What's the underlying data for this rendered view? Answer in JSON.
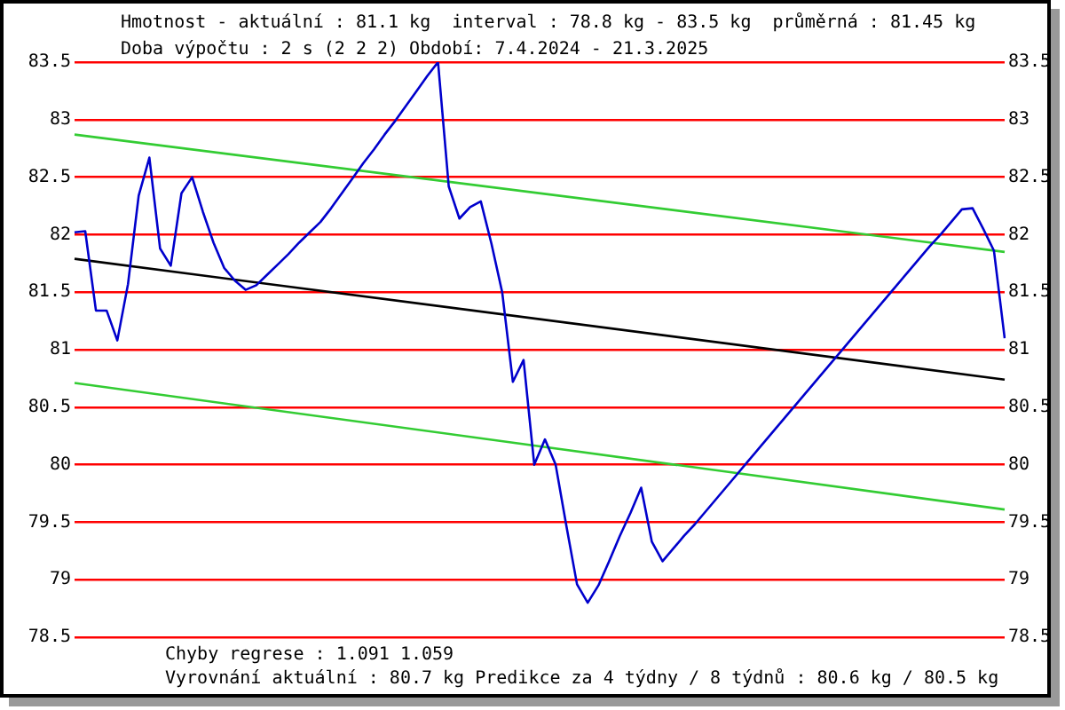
{
  "chart_data": {
    "type": "line",
    "title": "Hmotnost - aktuální : 81.1 kg  interval : 78.8 kg - 83.5 kg  průměrná : 81.45 kg",
    "subtitle": "Doba výpočtu : 2 s (2 2 2) Období: 7.4.2024 - 21.3.2025",
    "categories": [
      null,
      null,
      null,
      null,
      null,
      null,
      null,
      null,
      null,
      null,
      null,
      null,
      null,
      null,
      null,
      null,
      null,
      null,
      null,
      null,
      null,
      null,
      null,
      null,
      null,
      null,
      null,
      null,
      null,
      null,
      null,
      null,
      null,
      null,
      null,
      null,
      null,
      null,
      null,
      null,
      null,
      null,
      null,
      null,
      null,
      null,
      null,
      null,
      null,
      null,
      null,
      null,
      null,
      null,
      null,
      null,
      null,
      null,
      null,
      null,
      null,
      null,
      null,
      null,
      null,
      null,
      null,
      null,
      null,
      null,
      null,
      null,
      null,
      null,
      null,
      null,
      null,
      null,
      null,
      null,
      null,
      null,
      null,
      null,
      null,
      null,
      null,
      null
    ],
    "series": [
      {
        "color": "#0000cc",
        "values": [
          82.02,
          82.03,
          81.34,
          81.34,
          81.08,
          81.57,
          82.34,
          82.67,
          81.88,
          81.73,
          82.36,
          82.5,
          82.2,
          81.93,
          81.71,
          81.6,
          81.52,
          81.56,
          81.65,
          81.74,
          81.83,
          81.93,
          82.02,
          82.11,
          82.23,
          82.36,
          82.49,
          82.62,
          82.74,
          82.87,
          82.99,
          83.12,
          83.25,
          83.38,
          83.5,
          82.42,
          82.14,
          82.24,
          82.29,
          81.92,
          81.5,
          80.72,
          80.91,
          80.0,
          80.22,
          80.0,
          79.47,
          78.96,
          78.8,
          78.95,
          79.16,
          79.38,
          79.58,
          79.8,
          79.33,
          79.16,
          79.27,
          79.38,
          79.48,
          79.59,
          79.7,
          79.81,
          79.92,
          80.03,
          80.14,
          80.25,
          80.36,
          80.47,
          80.58,
          80.69,
          80.8,
          80.91,
          81.02,
          81.13,
          81.24,
          81.35,
          81.46,
          81.57,
          81.68,
          81.79,
          81.9,
          82.0,
          82.11,
          82.22,
          82.23,
          82.05,
          81.86,
          81.1
        ]
      },
      {
        "color": "#000000",
        "values": [
          81.79,
          null,
          null,
          null,
          null,
          null,
          null,
          null,
          null,
          null,
          null,
          null,
          null,
          null,
          null,
          null,
          null,
          null,
          null,
          null,
          null,
          null,
          null,
          null,
          null,
          null,
          null,
          null,
          null,
          null,
          null,
          null,
          null,
          null,
          null,
          null,
          null,
          null,
          null,
          null,
          null,
          null,
          null,
          null,
          null,
          null,
          null,
          null,
          null,
          null,
          null,
          null,
          null,
          null,
          null,
          null,
          null,
          null,
          null,
          null,
          null,
          null,
          null,
          null,
          null,
          null,
          null,
          null,
          null,
          null,
          null,
          null,
          null,
          null,
          null,
          null,
          null,
          null,
          null,
          null,
          null,
          null,
          null,
          null,
          null,
          null,
          null,
          80.74
        ]
      },
      {
        "color": "#33cc33",
        "values": [
          82.87,
          null,
          null,
          null,
          null,
          null,
          null,
          null,
          null,
          null,
          null,
          null,
          null,
          null,
          null,
          null,
          null,
          null,
          null,
          null,
          null,
          null,
          null,
          null,
          null,
          null,
          null,
          null,
          null,
          null,
          null,
          null,
          null,
          null,
          null,
          null,
          null,
          null,
          null,
          null,
          null,
          null,
          null,
          null,
          null,
          null,
          null,
          null,
          null,
          null,
          null,
          null,
          null,
          null,
          null,
          null,
          null,
          null,
          null,
          null,
          null,
          null,
          null,
          null,
          null,
          null,
          null,
          null,
          null,
          null,
          null,
          null,
          null,
          null,
          null,
          null,
          null,
          null,
          null,
          null,
          null,
          null,
          null,
          null,
          null,
          null,
          null,
          81.85
        ]
      },
      {
        "color": "#33cc33",
        "values": [
          80.71,
          null,
          null,
          null,
          null,
          null,
          null,
          null,
          null,
          null,
          null,
          null,
          null,
          null,
          null,
          null,
          null,
          null,
          null,
          null,
          null,
          null,
          null,
          null,
          null,
          null,
          null,
          null,
          null,
          null,
          null,
          null,
          null,
          null,
          null,
          null,
          null,
          null,
          null,
          null,
          null,
          null,
          null,
          null,
          null,
          null,
          null,
          null,
          null,
          null,
          null,
          null,
          null,
          null,
          null,
          null,
          null,
          null,
          null,
          null,
          null,
          null,
          null,
          null,
          null,
          null,
          null,
          null,
          null,
          null,
          null,
          null,
          null,
          null,
          null,
          null,
          null,
          null,
          null,
          null,
          null,
          null,
          null,
          null,
          null,
          null,
          null,
          79.61
        ]
      }
    ],
    "ylim": [
      78.5,
      83.5
    ],
    "yticks": [
      78.5,
      79,
      79.5,
      80,
      80.5,
      81,
      81.5,
      82,
      82.5,
      83,
      83.5
    ],
    "y2lim": [
      78.5,
      83.5
    ],
    "y2ticks": [
      78.5,
      79,
      79.5,
      80,
      80.5,
      81,
      81.5,
      82,
      82.5,
      83,
      83.5
    ],
    "grid": "y",
    "marker": "none",
    "line_style": "solid",
    "tick_labels": "y",
    "annotations": [
      "Chyby regrese : 1.091 1.059",
      "Vyrovnání aktuální : 80.7 kg Predikce za 4 týdny / 8 týdnů : 80.6 kg / 80.5 kg"
    ]
  }
}
